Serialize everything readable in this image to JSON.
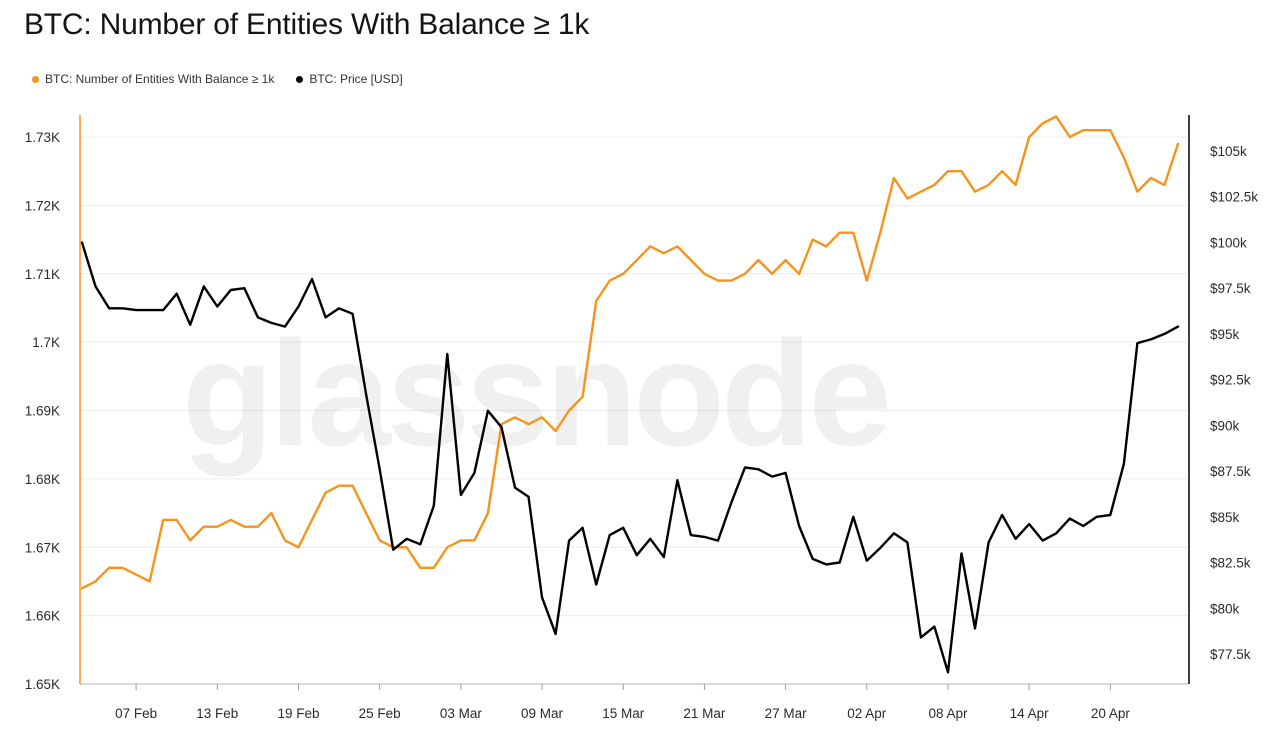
{
  "title": "BTC: Number of Entities With Balance ≥ 1k",
  "watermark": "glassnode",
  "chart_data": {
    "type": "line",
    "title": "BTC: Number of Entities With Balance ≥ 1k",
    "legend_position": "top-left",
    "grid": true,
    "x": [
      "02-03",
      "02-04",
      "02-05",
      "02-06",
      "02-07",
      "02-08",
      "02-09",
      "02-10",
      "02-11",
      "02-12",
      "02-13",
      "02-14",
      "02-15",
      "02-16",
      "02-17",
      "02-18",
      "02-19",
      "02-20",
      "02-21",
      "02-22",
      "02-23",
      "02-24",
      "02-25",
      "02-26",
      "02-27",
      "02-28",
      "03-01",
      "03-02",
      "03-03",
      "03-04",
      "03-05",
      "03-06",
      "03-07",
      "03-08",
      "03-09",
      "03-10",
      "03-11",
      "03-12",
      "03-13",
      "03-14",
      "03-15",
      "03-16",
      "03-17",
      "03-18",
      "03-19",
      "03-20",
      "03-21",
      "03-22",
      "03-23",
      "03-24",
      "03-25",
      "03-26",
      "03-27",
      "03-28",
      "03-29",
      "03-30",
      "03-31",
      "04-01",
      "04-02",
      "04-03",
      "04-04",
      "04-05",
      "04-06",
      "04-07",
      "04-08",
      "04-09",
      "04-10",
      "04-11",
      "04-12",
      "04-13",
      "04-14",
      "04-15",
      "04-16",
      "04-17",
      "04-18",
      "04-19",
      "04-20",
      "04-21",
      "04-22",
      "04-23",
      "04-24",
      "04-25"
    ],
    "x_ticks": [
      "07 Feb",
      "13 Feb",
      "19 Feb",
      "25 Feb",
      "03 Mar",
      "09 Mar",
      "15 Mar",
      "21 Mar",
      "27 Mar",
      "02 Apr",
      "08 Apr",
      "14 Apr",
      "20 Apr"
    ],
    "y_left": {
      "ticks": [
        "1.65K",
        "1.66K",
        "1.67K",
        "1.68K",
        "1.69K",
        "1.7K",
        "1.71K",
        "1.72K",
        "1.73K"
      ],
      "ylim": [
        1650,
        1730
      ]
    },
    "y_right": {
      "ticks": [
        "$77.5k",
        "$80k",
        "$82.5k",
        "$85k",
        "$87.5k",
        "$90k",
        "$92.5k",
        "$95k",
        "$97.5k",
        "$100k",
        "$102.5k",
        "$105k"
      ],
      "ylim": [
        77500,
        105000
      ]
    },
    "series": [
      {
        "name": "BTC: Number of Entities With Balance ≥ 1k",
        "axis": "left",
        "color": "#f7931a",
        "values": [
          1664,
          1665,
          1667,
          1667,
          1666,
          1665,
          1674,
          1674,
          1671,
          1673,
          1673,
          1674,
          1673,
          1673,
          1675,
          1671,
          1670,
          1674,
          1678,
          1679,
          1679,
          1675,
          1671,
          1670,
          1670,
          1667,
          1667,
          1670,
          1671,
          1671,
          1675,
          1688,
          1689,
          1688,
          1689,
          1687,
          1690,
          1692,
          1706,
          1709,
          1710,
          1712,
          1714,
          1713,
          1714,
          1712,
          1710,
          1709,
          1709,
          1710,
          1712,
          1710,
          1712,
          1710,
          1715,
          1714,
          1716,
          1716,
          1709,
          1716,
          1724,
          1721,
          1722,
          1723,
          1725,
          1725,
          1722,
          1723,
          1725,
          1723,
          1730,
          1732,
          1733,
          1730,
          1731,
          1731,
          1731,
          1727,
          1722,
          1724,
          1723,
          1729
        ]
      },
      {
        "name": "BTC: Price [USD]",
        "axis": "right",
        "color": "#000000",
        "values": [
          100000,
          97600,
          96400,
          96400,
          96300,
          96300,
          96300,
          97200,
          95500,
          97600,
          96500,
          97400,
          97500,
          95900,
          95600,
          95400,
          96500,
          98000,
          95900,
          96400,
          96100,
          91700,
          87600,
          83200,
          83800,
          83500,
          85600,
          93900,
          86200,
          87400,
          90800,
          89900,
          86600,
          86100,
          80600,
          78600,
          83700,
          84400,
          81300,
          84000,
          84400,
          82900,
          83800,
          82800,
          87000,
          84000,
          83900,
          83700,
          85800,
          87700,
          87600,
          87200,
          87400,
          84500,
          82700,
          82400,
          82500,
          85000,
          82600,
          83300,
          84100,
          83600,
          78400,
          79000,
          76500,
          83000,
          78900,
          83600,
          85100,
          83800,
          84600,
          83700,
          84100,
          84900,
          84500,
          85000,
          85100,
          87900,
          94500,
          94700,
          95000,
          95400
        ]
      }
    ]
  },
  "legend": [
    {
      "label": "BTC: Number of Entities With Balance ≥ 1k",
      "color": "#f7931a"
    },
    {
      "label": "BTC: Price [USD]",
      "color": "#000000"
    }
  ]
}
